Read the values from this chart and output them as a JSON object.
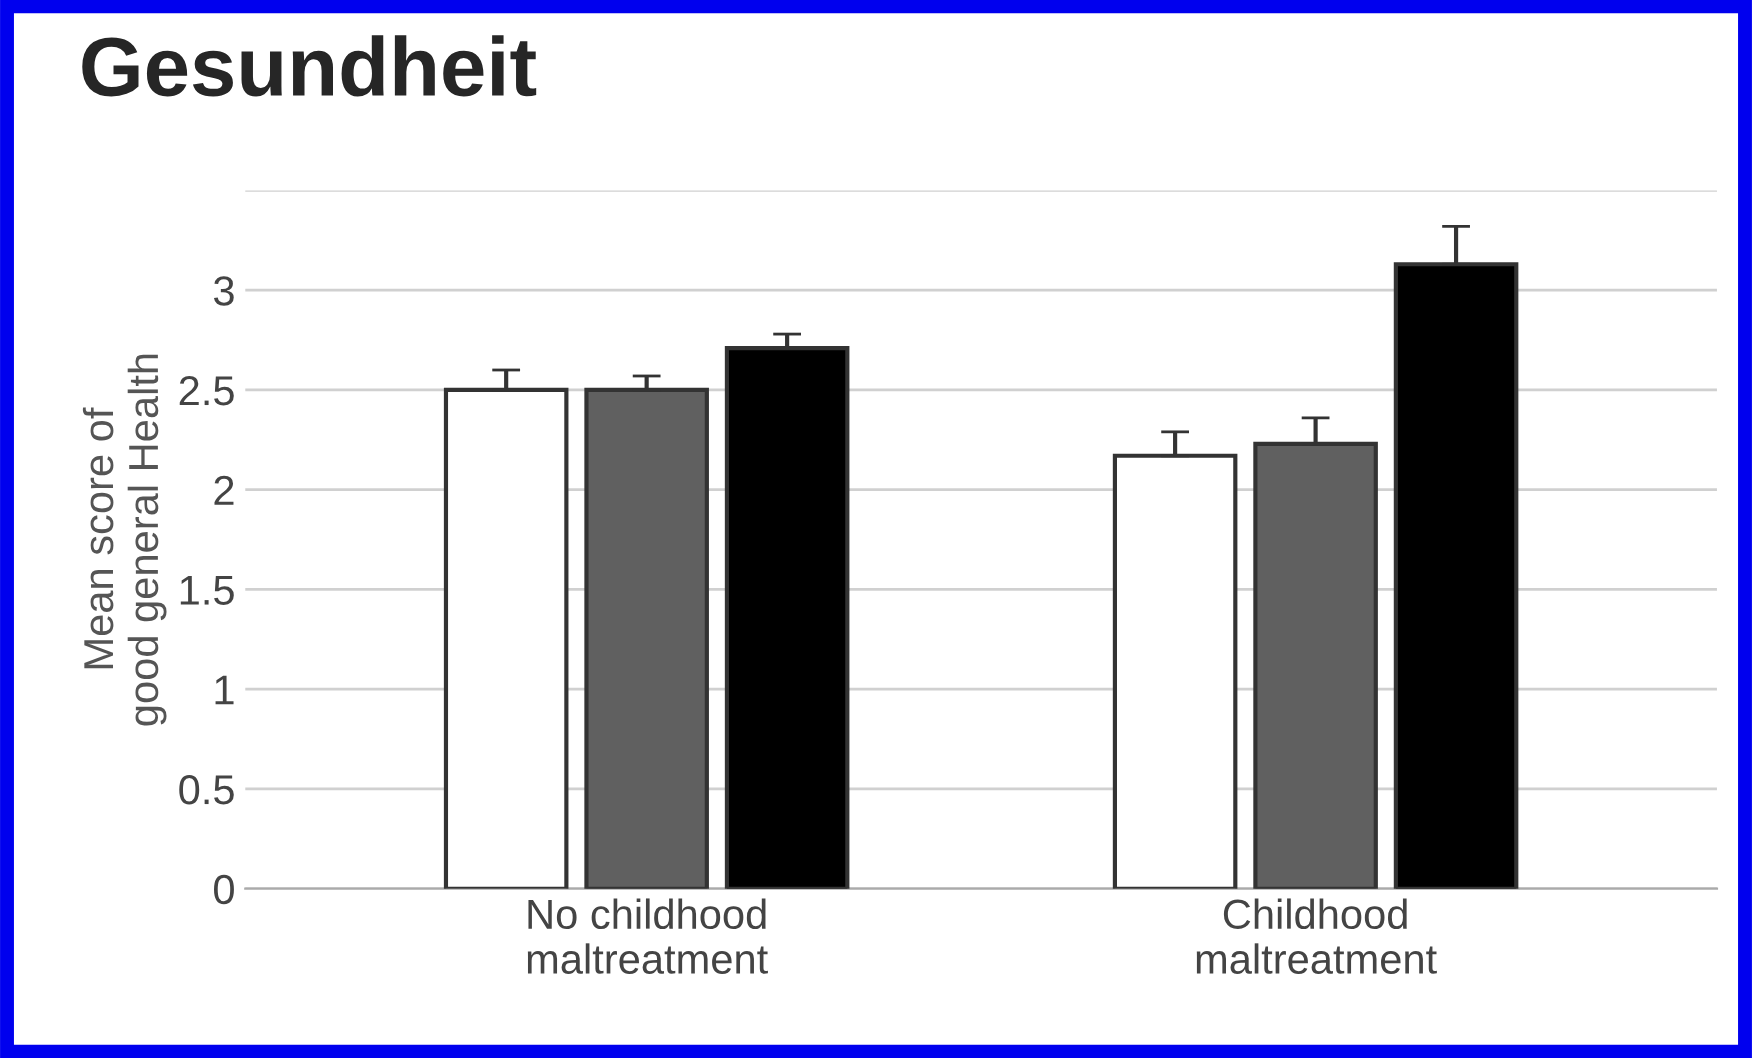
{
  "chart_data": {
    "type": "bar",
    "title": "Gesundheit",
    "ylabel": "Mean score of\ngood general Health",
    "categories": [
      "No childhood\nmaltreatment",
      "Childhood\nmaltreatment"
    ],
    "series": [
      {
        "color": "#ffffff",
        "values": [
          2.5,
          2.17
        ],
        "errors": [
          [
            2.5,
            2.6
          ],
          [
            2.17,
            2.29
          ]
        ]
      },
      {
        "color": "#606060",
        "values": [
          2.5,
          2.23
        ],
        "errors": [
          [
            2.5,
            2.57
          ],
          [
            2.23,
            2.36
          ]
        ]
      },
      {
        "color": "#000000",
        "values": [
          2.71,
          3.13
        ],
        "errors": [
          [
            2.71,
            2.78
          ],
          [
            3.13,
            3.32
          ]
        ]
      }
    ],
    "ylim": [
      0,
      3.5
    ],
    "yticks": [
      0,
      0.5,
      1,
      1.5,
      2,
      2.5,
      3,
      {
        "value": 3.5,
        "label": null
      }
    ],
    "grid": "y",
    "legend": false
  }
}
